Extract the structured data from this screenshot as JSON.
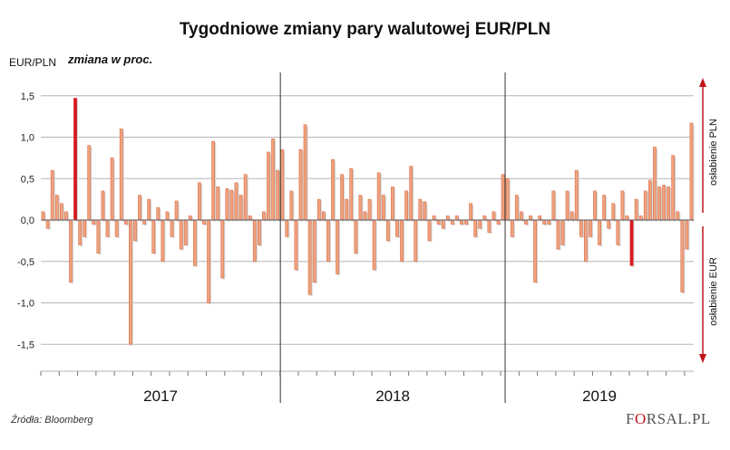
{
  "chart_data": {
    "type": "bar",
    "title": "Tygodniowe zmiany pary walutowej EUR/PLN",
    "ylabel": "EUR/PLN",
    "ylabel_note": "zmiana w proc.",
    "ylim": [
      -1.8,
      1.7
    ],
    "yticks": [
      "1,5",
      "1,0",
      "0,5",
      "0,0",
      "-0,5",
      "-1,0",
      "-1,5"
    ],
    "ytick_values": [
      1.5,
      1.0,
      0.5,
      0.0,
      -0.5,
      -1.0,
      -1.5
    ],
    "years": [
      "2017",
      "2018",
      "2019"
    ],
    "grid": true,
    "colors": {
      "bar": "#f0a27e",
      "bar_edge": "#d9704c",
      "highlight": "#d71920",
      "grid": "#b5b5b5",
      "divider": "#333333"
    },
    "annotations": {
      "up": "osłabienie PLN",
      "down": "osłabienie EUR"
    },
    "series": [
      {
        "values": [
          0.1,
          -0.1,
          0.6,
          0.3,
          0.2,
          0.1,
          -0.75,
          1.47,
          -0.3,
          -0.2,
          0.9,
          -0.05,
          -0.4,
          0.35,
          -0.2,
          0.75,
          -0.2,
          1.1,
          -0.05,
          -1.5,
          -0.25,
          0.3,
          -0.05,
          0.25,
          -0.4,
          0.15,
          -0.5,
          0.1,
          -0.2,
          0.23,
          -0.35,
          -0.3,
          0.05,
          -0.55,
          0.45,
          -0.05,
          -1.0,
          0.95,
          0.4,
          -0.7,
          0.38,
          0.36,
          0.45,
          0.3,
          0.55,
          0.05,
          -0.5,
          -0.3,
          0.1,
          0.82,
          0.98,
          0.6,
          0.85,
          -0.2,
          0.35,
          -0.6,
          0.85,
          1.15,
          -0.9,
          -0.75,
          0.25,
          0.1,
          -0.5,
          0.73,
          -0.65,
          0.55,
          0.25,
          0.62,
          -0.4,
          0.3,
          0.1,
          0.25,
          -0.6,
          0.57,
          0.3,
          -0.25,
          0.4,
          -0.2,
          -0.5,
          0.35,
          0.65,
          -0.5,
          0.25,
          0.22,
          -0.25,
          0.05,
          -0.05,
          -0.1,
          0.05,
          -0.05,
          0.05,
          -0.05,
          -0.05,
          0.2,
          -0.2,
          -0.1,
          0.05,
          -0.15,
          0.1,
          -0.05,
          0.55,
          0.5,
          -0.2,
          0.3,
          0.1,
          -0.05,
          0.05,
          -0.75,
          0.05,
          -0.05,
          -0.05,
          0.35,
          -0.35,
          -0.3,
          0.35,
          0.1,
          0.6,
          -0.2,
          -0.5,
          -0.2,
          0.35,
          -0.3,
          0.3,
          -0.1,
          0.2,
          -0.3,
          0.35,
          0.05,
          -0.55,
          0.25,
          0.05,
          0.35,
          0.48,
          0.88,
          0.4,
          0.42,
          0.4,
          0.78,
          0.1,
          -0.87,
          -0.35,
          1.17
        ]
      }
    ],
    "highlight_indices": [
      7,
      128
    ]
  },
  "source": "Źródła: Bloomberg",
  "logo": {
    "text1": "F",
    "o": "O",
    "text2": "RSAL",
    "text3": ".PL"
  }
}
